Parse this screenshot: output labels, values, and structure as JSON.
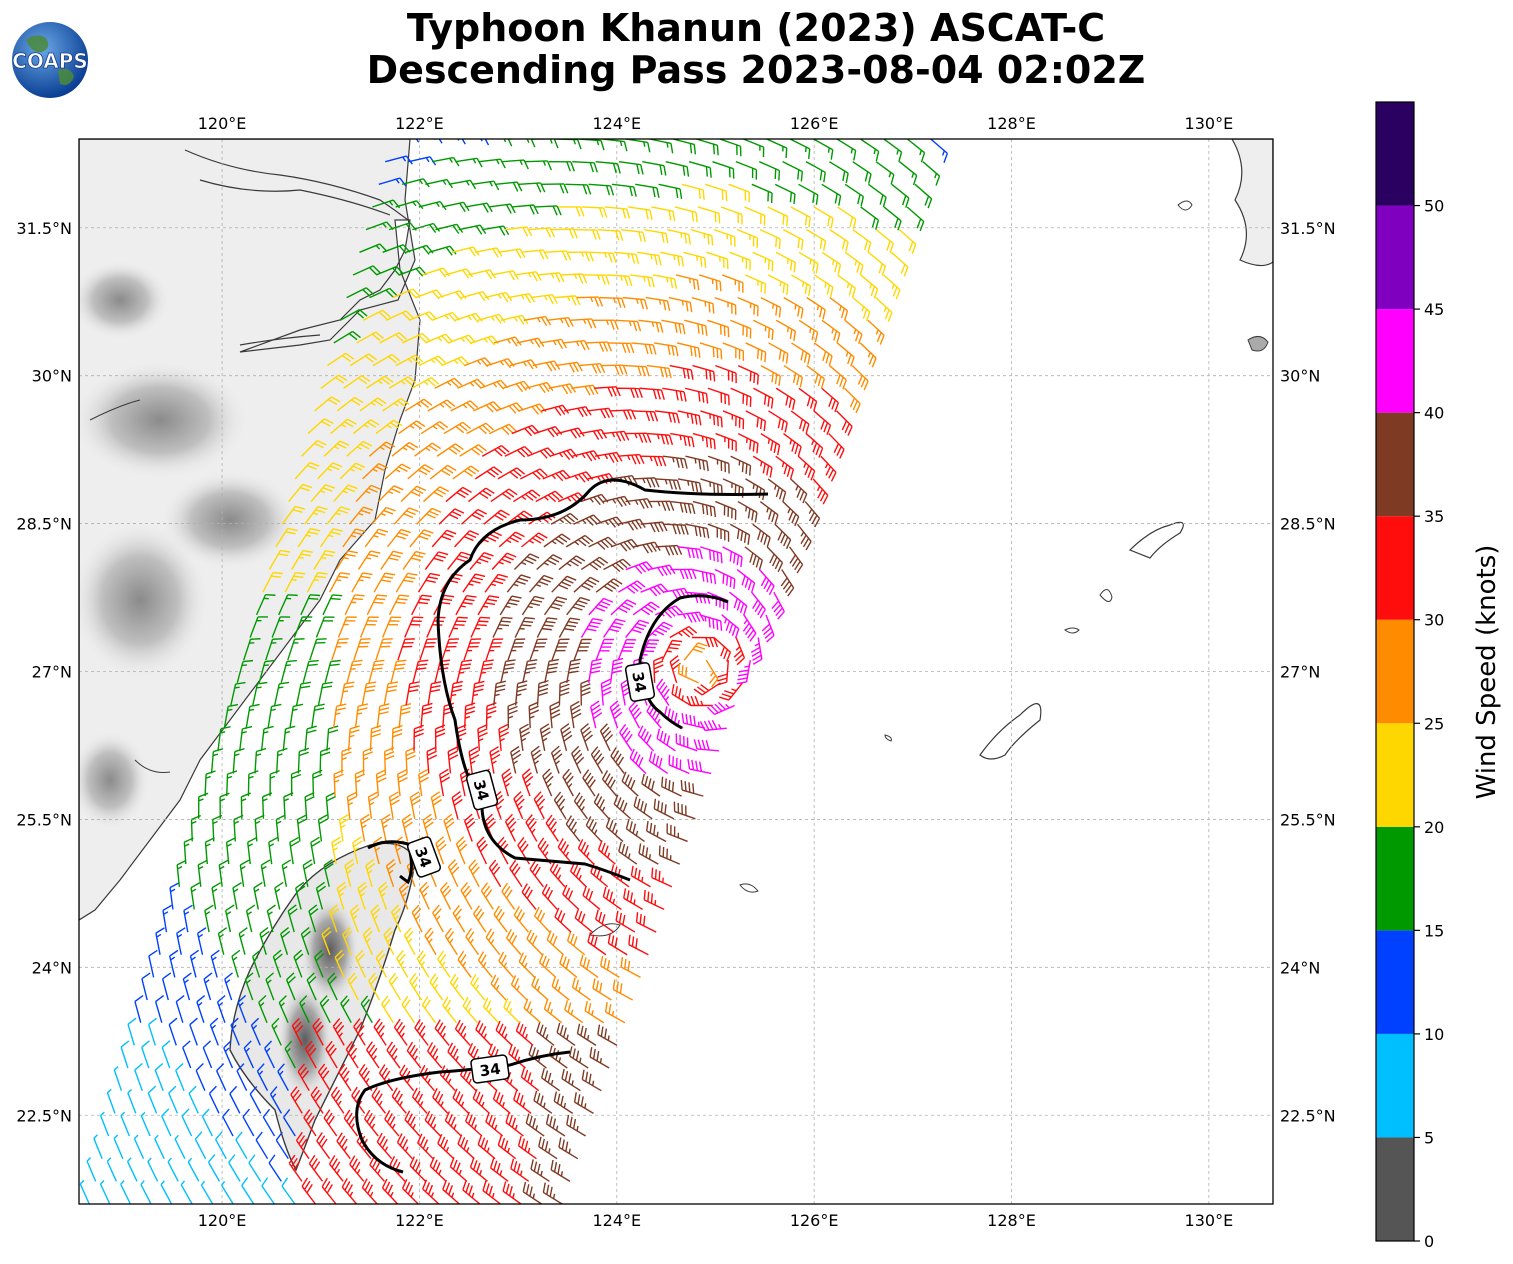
{
  "title": {
    "line1": "Typhoon Khanun (2023) ASCAT-C",
    "line2": "Descending Pass 2023-08-04 02:02Z"
  },
  "logo": {
    "text": "COAPS",
    "icon": "globe-icon"
  },
  "map": {
    "lon_range": [
      118.55,
      130.65
    ],
    "lat_range": [
      21.6,
      32.4
    ],
    "lon_ticks": [
      {
        "value": 120,
        "label": "120°E"
      },
      {
        "value": 122,
        "label": "122°E"
      },
      {
        "value": 124,
        "label": "124°E"
      },
      {
        "value": 126,
        "label": "126°E"
      },
      {
        "value": 128,
        "label": "128°E"
      },
      {
        "value": 130,
        "label": "130°E"
      }
    ],
    "lat_ticks": [
      {
        "value": 22.5,
        "label": "22.5°N"
      },
      {
        "value": 24,
        "label": "24°N"
      },
      {
        "value": 25.5,
        "label": "25.5°N"
      },
      {
        "value": 27,
        "label": "27°N"
      },
      {
        "value": 28.5,
        "label": "28.5°N"
      },
      {
        "value": 30,
        "label": "30°N"
      },
      {
        "value": 31.5,
        "label": "31.5°N"
      }
    ],
    "grid": true,
    "contour_value": "34",
    "contour_color": "#000000"
  },
  "colorbar": {
    "label": "Wind Speed (knots)",
    "ticks": [
      "0",
      "5",
      "10",
      "15",
      "20",
      "25",
      "30",
      "35",
      "40",
      "45",
      "50"
    ],
    "bins": [
      {
        "min": 0,
        "max": 5,
        "color": "#555555"
      },
      {
        "min": 5,
        "max": 10,
        "color": "#00bfff"
      },
      {
        "min": 10,
        "max": 15,
        "color": "#0040ff"
      },
      {
        "min": 15,
        "max": 20,
        "color": "#009900"
      },
      {
        "min": 20,
        "max": 25,
        "color": "#ffd700"
      },
      {
        "min": 25,
        "max": 30,
        "color": "#ff8c00"
      },
      {
        "min": 30,
        "max": 35,
        "color": "#ff0d0d"
      },
      {
        "min": 35,
        "max": 40,
        "color": "#7f3a24"
      },
      {
        "min": 40,
        "max": 45,
        "color": "#ff00ff"
      },
      {
        "min": 45,
        "max": 50,
        "color": "#8000c0"
      },
      {
        "min": 50,
        "max": 55,
        "color": "#2a0060"
      }
    ]
  },
  "storm": {
    "center_lon": 124.85,
    "center_lat": 27.05
  },
  "swath": {
    "corners": [
      [
        118.55,
        21.6
      ],
      [
        123.55,
        21.6
      ],
      [
        127.3,
        32.4
      ],
      [
        121.6,
        32.4
      ]
    ]
  }
}
